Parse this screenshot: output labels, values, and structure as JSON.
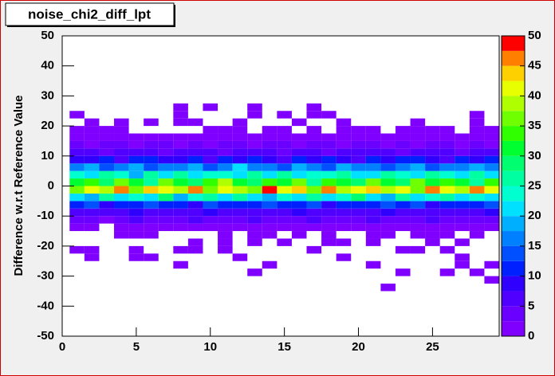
{
  "chart_data": {
    "type": "heatmap",
    "title": "noise_chi2_diff_lpt",
    "y_label": "Difference w.r.t Reference Value",
    "xlim": [
      0,
      29.5
    ],
    "ylim": [
      -50,
      50
    ],
    "zlim": [
      0,
      50
    ],
    "xticks": [
      0,
      5,
      10,
      15,
      20,
      25
    ],
    "yticks": [
      -50,
      -40,
      -30,
      -20,
      -10,
      0,
      10,
      20,
      30,
      40,
      50
    ],
    "zticks": [
      0,
      5,
      10,
      15,
      20,
      25,
      30,
      35,
      40,
      45,
      50
    ],
    "xbins": [
      0.5,
      1.5,
      2.5,
      3.5,
      4.5,
      5.5,
      6.5,
      7.5,
      8.5,
      9.5,
      10.5,
      11.5,
      12.5,
      13.5,
      14.5,
      15.5,
      16.5,
      17.5,
      18.5,
      19.5,
      20.5,
      21.5,
      22.5,
      23.5,
      24.5,
      25.5,
      26.5,
      27.5,
      28.5,
      29.5
    ],
    "ybins": [
      -35,
      -32.5,
      -30,
      -27.5,
      -25,
      -22.5,
      -20,
      -17.5,
      -15,
      -12.5,
      -10,
      -7.5,
      -5,
      -2.5,
      0,
      2.5,
      5,
      7.5,
      10,
      12.5,
      15,
      17.5,
      20,
      22.5,
      25,
      27.5
    ],
    "palette": [
      "#8000ff",
      "#6a00ff",
      "#5000ff",
      "#3000ff",
      "#0020ff",
      "#0050ff",
      "#0080ff",
      "#00b0ff",
      "#00e0ff",
      "#00ffd0",
      "#00ffa0",
      "#00ff70",
      "#00ff30",
      "#30ff00",
      "#70ff00",
      "#b0ff00",
      "#e8ff00",
      "#ffd000",
      "#ff8000",
      "#ff0000"
    ],
    "z": [
      [
        0,
        0,
        0,
        0,
        0,
        0,
        0,
        0,
        0,
        0,
        0,
        0,
        0,
        0,
        0,
        0,
        0,
        0,
        0,
        0,
        0,
        1,
        0,
        0,
        0,
        0,
        0,
        0,
        0
      ],
      [
        0,
        0,
        0,
        0,
        0,
        0,
        0,
        0,
        0,
        0,
        0,
        0,
        0,
        0,
        0,
        0,
        0,
        0,
        0,
        0,
        0,
        0,
        0,
        0,
        0,
        0,
        0,
        0,
        1
      ],
      [
        0,
        0,
        0,
        0,
        0,
        0,
        0,
        0,
        0,
        0,
        0,
        0,
        1,
        0,
        0,
        0,
        0,
        0,
        0,
        0,
        0,
        0,
        1,
        0,
        0,
        1,
        0,
        1,
        0
      ],
      [
        0,
        0,
        0,
        0,
        0,
        0,
        0,
        1,
        0,
        0,
        0,
        0,
        0,
        1,
        0,
        0,
        0,
        0,
        0,
        0,
        1,
        0,
        0,
        0,
        0,
        0,
        1,
        0,
        1
      ],
      [
        0,
        1,
        0,
        0,
        1,
        1,
        0,
        0,
        0,
        0,
        0,
        1,
        0,
        0,
        0,
        0,
        0,
        0,
        1,
        0,
        0,
        0,
        0,
        0,
        0,
        0,
        1,
        0,
        0
      ],
      [
        1,
        1,
        0,
        0,
        1,
        0,
        0,
        1,
        1,
        0,
        1,
        0,
        0,
        0,
        0,
        0,
        1,
        0,
        0,
        0,
        0,
        0,
        1,
        1,
        0,
        1,
        0,
        0,
        0
      ],
      [
        0,
        0,
        0,
        0,
        0,
        0,
        0,
        0,
        1,
        0,
        1,
        0,
        1,
        0,
        1,
        0,
        0,
        1,
        1,
        0,
        1,
        0,
        0,
        0,
        1,
        0,
        1,
        0,
        0
      ],
      [
        0,
        0,
        0,
        1,
        1,
        1,
        0,
        0,
        0,
        0,
        1,
        0,
        1,
        1,
        0,
        1,
        0,
        1,
        0,
        0,
        1,
        1,
        0,
        1,
        1,
        1,
        0,
        1,
        0
      ],
      [
        1,
        1,
        0,
        1,
        2,
        1,
        1,
        2,
        1,
        1,
        2,
        1,
        1,
        2,
        1,
        1,
        2,
        1,
        1,
        2,
        1,
        1,
        2,
        1,
        1,
        2,
        1,
        1,
        1
      ],
      [
        3,
        4,
        2,
        3,
        5,
        4,
        3,
        4,
        5,
        3,
        4,
        3,
        5,
        4,
        3,
        4,
        5,
        3,
        4,
        3,
        5,
        4,
        3,
        4,
        5,
        3,
        4,
        3,
        4
      ],
      [
        6,
        5,
        7,
        6,
        8,
        6,
        5,
        7,
        6,
        8,
        5,
        6,
        7,
        5,
        6,
        8,
        7,
        6,
        5,
        7,
        6,
        8,
        5,
        7,
        6,
        5,
        7,
        6,
        8
      ],
      [
        11,
        13,
        9,
        12,
        10,
        14,
        11,
        12,
        9,
        13,
        10,
        12,
        11,
        14,
        10,
        12,
        13,
        9,
        11,
        12,
        10,
        14,
        11,
        13,
        9,
        12,
        10,
        11,
        13
      ],
      [
        22,
        18,
        26,
        20,
        24,
        21,
        28,
        19,
        23,
        25,
        20,
        27,
        22,
        18,
        24,
        21,
        26,
        20,
        23,
        28,
        22,
        19,
        25,
        21,
        24,
        27,
        20,
        23,
        22
      ],
      [
        35,
        42,
        38,
        47,
        36,
        44,
        40,
        38,
        45,
        37,
        42,
        39,
        36,
        48,
        40,
        43,
        37,
        46,
        39,
        41,
        44,
        38,
        42,
        36,
        45,
        40,
        38,
        47,
        41
      ],
      [
        30,
        34,
        28,
        36,
        31,
        27,
        35,
        32,
        29,
        33,
        38,
        30,
        28,
        34,
        31,
        36,
        27,
        33,
        30,
        29,
        35,
        32,
        28,
        37,
        31,
        34,
        30,
        27,
        33
      ],
      [
        24,
        21,
        26,
        23,
        19,
        25,
        22,
        27,
        20,
        24,
        23,
        21,
        26,
        22,
        25,
        20,
        24,
        23,
        27,
        21,
        22,
        26,
        24,
        20,
        25,
        23,
        21,
        26,
        22
      ],
      [
        15,
        18,
        14,
        16,
        19,
        13,
        17,
        15,
        18,
        14,
        16,
        20,
        15,
        17,
        13,
        18,
        16,
        14,
        19,
        15,
        17,
        13,
        16,
        18,
        14,
        17,
        15,
        19,
        16
      ],
      [
        9,
        8,
        11,
        7,
        10,
        12,
        8,
        9,
        11,
        7,
        10,
        8,
        12,
        9,
        7,
        11,
        8,
        10,
        9,
        7,
        12,
        8,
        10,
        11,
        9,
        7,
        10,
        8,
        11
      ],
      [
        5,
        6,
        4,
        7,
        5,
        6,
        4,
        5,
        7,
        6,
        4,
        5,
        6,
        7,
        4,
        5,
        6,
        4,
        7,
        5,
        6,
        5,
        4,
        6,
        7,
        5,
        4,
        6,
        5
      ],
      [
        3,
        2,
        4,
        3,
        2,
        3,
        4,
        2,
        3,
        2,
        4,
        3,
        2,
        3,
        3,
        2,
        4,
        3,
        2,
        3,
        4,
        2,
        3,
        2,
        3,
        4,
        2,
        3,
        2
      ],
      [
        2,
        1,
        1,
        1,
        1,
        2,
        1,
        1,
        1,
        1,
        2,
        1,
        1,
        1,
        1,
        2,
        1,
        1,
        1,
        1,
        1,
        2,
        1,
        1,
        1,
        1,
        2,
        1,
        1
      ],
      [
        1,
        1,
        1,
        1,
        0,
        0,
        0,
        0,
        0,
        1,
        1,
        1,
        0,
        1,
        1,
        0,
        1,
        0,
        1,
        1,
        1,
        0,
        1,
        1,
        1,
        1,
        0,
        1,
        1
      ],
      [
        0,
        1,
        0,
        1,
        0,
        1,
        0,
        1,
        1,
        0,
        0,
        1,
        0,
        0,
        0,
        1,
        0,
        0,
        1,
        0,
        0,
        0,
        0,
        1,
        0,
        0,
        0,
        1,
        0
      ],
      [
        1,
        0,
        0,
        0,
        0,
        0,
        0,
        1,
        0,
        0,
        0,
        0,
        1,
        0,
        1,
        0,
        1,
        1,
        0,
        0,
        0,
        0,
        0,
        0,
        0,
        0,
        0,
        1,
        0
      ],
      [
        0,
        0,
        0,
        0,
        0,
        0,
        0,
        1,
        0,
        1,
        0,
        0,
        1,
        0,
        0,
        0,
        1,
        0,
        0,
        0,
        0,
        0,
        0,
        0,
        0,
        0,
        0,
        0,
        0
      ]
    ]
  }
}
